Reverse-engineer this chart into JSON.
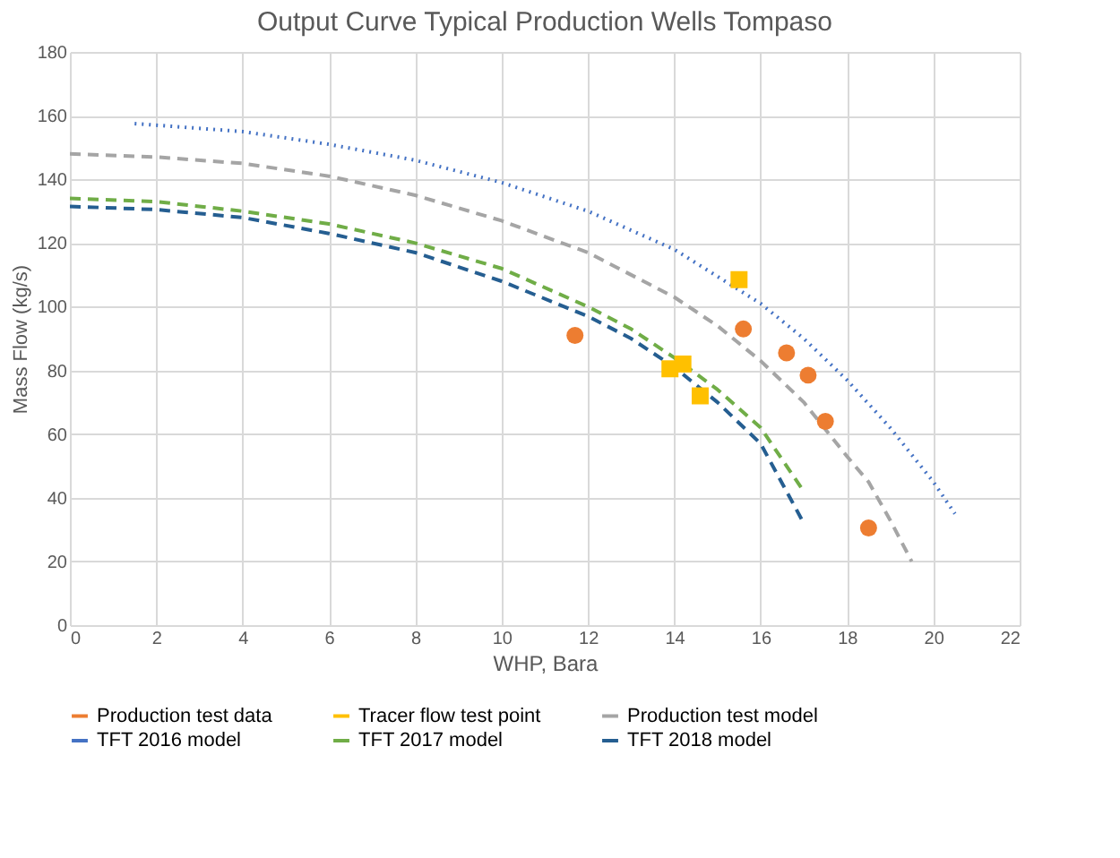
{
  "chart_data": {
    "type": "line",
    "title": "Output Curve Typical Production Wells Tompaso",
    "xlabel": "WHP, Bara",
    "ylabel": "Mass Flow (kg/s)",
    "xlim": [
      0,
      22
    ],
    "xticks": [
      0,
      2,
      4,
      6,
      8,
      10,
      12,
      14,
      16,
      18,
      20,
      22
    ],
    "ylim": [
      0,
      180
    ],
    "yticks": [
      0,
      20,
      40,
      60,
      80,
      100,
      120,
      140,
      160,
      180
    ],
    "grid": true,
    "legend": "bottom",
    "series": [
      {
        "name": "Production test data",
        "type": "scatter",
        "marker": "circle",
        "color": "#ed7d31",
        "x": [
          11.7,
          15.6,
          16.6,
          17.1,
          17.5,
          18.5
        ],
        "values": [
          91,
          93,
          85.5,
          78.5,
          64,
          30.5
        ]
      },
      {
        "name": "Tracer flow test point",
        "type": "scatter",
        "marker": "square",
        "color": "#ffc000",
        "x": [
          15.5,
          13.9,
          14.2,
          14.6
        ],
        "values": [
          108.5,
          80.5,
          82,
          72
        ]
      },
      {
        "name": "Production test model",
        "line_style": "dashed",
        "color": "#a5a5a5",
        "x": [
          0,
          2,
          4,
          6,
          8,
          10,
          12,
          14,
          15,
          16,
          17,
          18,
          18.5,
          19,
          19.5
        ],
        "values": [
          148,
          147,
          145,
          141,
          135,
          127,
          117,
          103,
          94,
          83,
          70,
          53,
          45,
          33,
          20
        ]
      },
      {
        "name": "TFT 2016 model",
        "line_style": "dotted",
        "color": "#4472c4",
        "x": [
          1.5,
          4,
          6,
          8,
          10,
          12,
          14,
          16,
          17,
          18,
          19,
          20,
          20.5
        ],
        "values": [
          157.5,
          155,
          151,
          146,
          139,
          130,
          118,
          101,
          90,
          77,
          62,
          45,
          35
        ]
      },
      {
        "name": "TFT 2017 model",
        "line_style": "dashed",
        "color": "#70ad47",
        "x": [
          0,
          2,
          4,
          6,
          8,
          10,
          12,
          13,
          14,
          15,
          16,
          17
        ],
        "values": [
          134,
          133,
          130,
          126,
          120,
          112,
          100,
          93,
          84,
          74,
          62,
          42
        ]
      },
      {
        "name": "TFT 2018 model",
        "line_style": "dashed",
        "color": "#255e91",
        "x": [
          0,
          2,
          4,
          6,
          8,
          10,
          12,
          13,
          14,
          15,
          16,
          17
        ],
        "values": [
          131.5,
          130.5,
          128,
          123,
          117,
          108,
          97,
          90,
          81,
          70,
          57,
          32
        ]
      }
    ]
  }
}
